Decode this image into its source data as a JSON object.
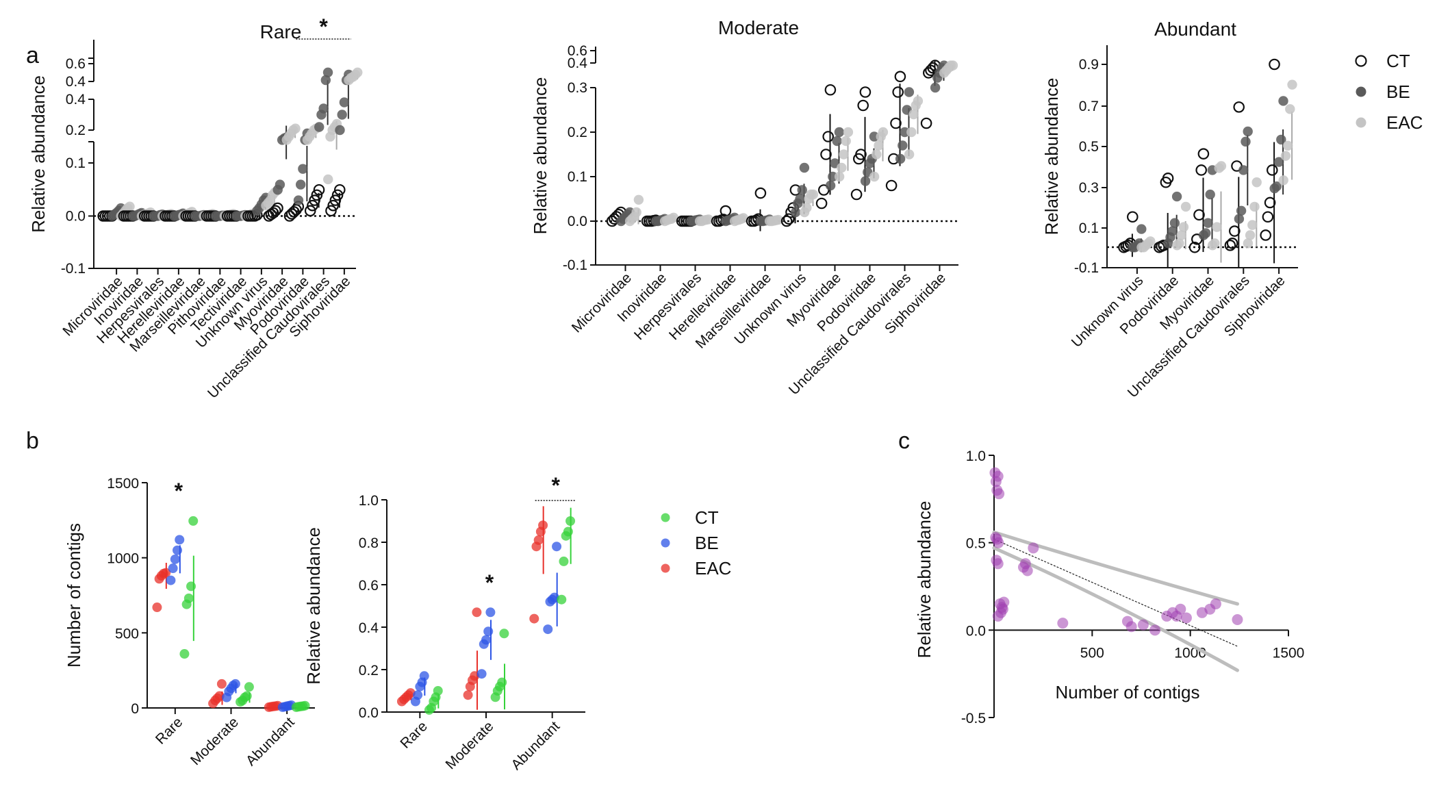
{
  "figure": {
    "panel_labels": [
      "a",
      "b",
      "c"
    ]
  },
  "chart_data": [
    {
      "id": "rare",
      "type": "scatter",
      "title": "Rare",
      "xlabel": "",
      "ylabel": "Relative abundance",
      "categories": [
        "Microviridae",
        "Inoviridae",
        "Herpesvirales",
        "Herelleviridae",
        "Marseilleviridae",
        "Pithoviridae",
        "Tectiviridae",
        "Unknown virus",
        "Myoviridae",
        "Podoviridae",
        "Unclassified Caudovirales",
        "Siphoviridae"
      ],
      "y_ticks": [
        "-0.1",
        "0.0",
        "0.1",
        "0.2",
        "0.4",
        "0.4",
        "0.6"
      ],
      "ylim": [
        -0.1,
        0.6
      ],
      "legend": "right",
      "series": [
        {
          "name": "CT",
          "values": [
            [
              0,
              0,
              0,
              0,
              0
            ],
            [
              0,
              0,
              0,
              0,
              0
            ],
            [
              0,
              0,
              0,
              0,
              0
            ],
            [
              0,
              0,
              0,
              0,
              0
            ],
            [
              0,
              0,
              0,
              0,
              0
            ],
            [
              0,
              0,
              0,
              0,
              0
            ],
            [
              0,
              0,
              0,
              0,
              0
            ],
            [
              0,
              0,
              0,
              0,
              0.002
            ],
            [
              0,
              0.003,
              0.006,
              0.01,
              0.015
            ],
            [
              0,
              0.004,
              0.008,
              0.012,
              0.018
            ],
            [
              0.01,
              0.02,
              0.03,
              0.04,
              0.05
            ],
            [
              0.01,
              0.02,
              0.03,
              0.04,
              0.05
            ]
          ]
        },
        {
          "name": "BE",
          "values": [
            [
              0,
              0.003,
              0.006,
              0.01,
              0.015
            ],
            [
              0,
              0,
              0.002,
              0.004,
              0.006
            ],
            [
              0,
              0,
              0,
              0.002,
              0.003
            ],
            [
              0,
              0,
              0.002,
              0.003,
              0.005
            ],
            [
              0,
              0,
              0,
              0.001,
              0.002
            ],
            [
              0,
              0,
              0,
              0.001,
              0.001
            ],
            [
              0,
              0,
              0,
              0.001,
              0.002
            ],
            [
              0.01,
              0.015,
              0.022,
              0.03,
              0.035
            ],
            [
              0.05,
              0.06,
              0.17,
              0.175,
              0.178
            ],
            [
              0.03,
              0.06,
              0.09,
              0.17,
              0.19
            ],
            [
              0.22,
              0.3,
              0.34,
              0.45,
              0.52
            ],
            [
              0.2,
              0.3,
              0.38,
              0.45,
              0.5
            ]
          ]
        },
        {
          "name": "EAC",
          "values": [
            [
              0,
              0.005,
              0.01,
              0.015,
              0.018
            ],
            [
              0,
              0.002,
              0.004,
              0.005,
              0.007
            ],
            [
              0,
              0,
              0.002,
              0.003,
              0.004
            ],
            [
              0,
              0.002,
              0.004,
              0.006,
              0.008
            ],
            [
              0,
              0,
              0.002,
              0.003,
              0.004
            ],
            [
              0,
              0,
              0.002,
              0.003,
              0.004
            ],
            [
              0,
              0,
              0.002,
              0.004,
              0.005
            ],
            [
              0.02,
              0.025,
              0.03,
              0.04,
              0.045
            ],
            [
              0.17,
              0.18,
              0.19,
              0.2,
              0.21
            ],
            [
              0.17,
              0.18,
              0.19,
              0.2,
              0.21
            ],
            [
              0.07,
              0.18,
              0.2,
              0.22,
              0.24
            ],
            [
              0.45,
              0.47,
              0.48,
              0.5,
              0.52
            ]
          ]
        }
      ],
      "annotations": [
        {
          "text": "*",
          "between": "Podoviridae-Siphoviridae"
        }
      ]
    },
    {
      "id": "moderate",
      "type": "scatter",
      "title": "Moderate",
      "xlabel": "",
      "ylabel": "Relative abundance",
      "categories": [
        "Microviridae",
        "Inoviridae",
        "Herpesvirales",
        "Herelleviridae",
        "Marseilleviridae",
        "Unknown virus",
        "Myoviridae",
        "Podoviridae",
        "Unclassified Caudovirales",
        "Siphoviridae"
      ],
      "y_ticks": [
        "-0.1",
        "0.0",
        "0.1",
        "0.2",
        "0.3",
        "0.4",
        "0.6"
      ],
      "ylim": [
        -0.1,
        0.6
      ],
      "series": [
        {
          "name": "CT",
          "values": [
            [
              0,
              0.005,
              0.01,
              0.015,
              0.02
            ],
            [
              0,
              0,
              0,
              0.001,
              0.002
            ],
            [
              0,
              0,
              0,
              0,
              0
            ],
            [
              0,
              0,
              0.002,
              0.004,
              0.023
            ],
            [
              0,
              0,
              0.002,
              0.005,
              0.063
            ],
            [
              0,
              0.005,
              0.02,
              0.03,
              0.07
            ],
            [
              0.04,
              0.07,
              0.15,
              0.19,
              0.295
            ],
            [
              0.06,
              0.14,
              0.15,
              0.26,
              0.29
            ],
            [
              0.08,
              0.14,
              0.22,
              0.29,
              0.345
            ],
            [
              0.22,
              0.36,
              0.37,
              0.38,
              0.39
            ]
          ]
        },
        {
          "name": "BE",
          "values": [
            [
              0,
              0.005,
              0.01,
              0.015,
              0.02
            ],
            [
              0,
              0,
              0.002,
              0.003,
              0.005
            ],
            [
              0,
              0,
              0.002,
              0.003,
              0.004
            ],
            [
              0,
              0.002,
              0.003,
              0.005,
              0.008
            ],
            [
              0,
              0,
              0.001,
              0.002,
              0.004
            ],
            [
              0.02,
              0.04,
              0.05,
              0.07,
              0.12
            ],
            [
              0.08,
              0.1,
              0.13,
              0.18,
              0.2
            ],
            [
              0.09,
              0.11,
              0.13,
              0.14,
              0.19
            ],
            [
              0.14,
              0.17,
              0.2,
              0.25,
              0.29
            ],
            [
              0.3,
              0.34,
              0.36,
              0.38,
              0.39
            ]
          ]
        },
        {
          "name": "EAC",
          "values": [
            [
              0,
              0.005,
              0.01,
              0.02,
              0.048
            ],
            [
              0,
              0.002,
              0.004,
              0.005,
              0.008
            ],
            [
              0,
              0,
              0.002,
              0.003,
              0.004
            ],
            [
              0,
              0.002,
              0.003,
              0.005,
              0.007
            ],
            [
              0,
              0,
              0.001,
              0.002,
              0.003
            ],
            [
              0.02,
              0.03,
              0.05,
              0.06,
              0.06
            ],
            [
              0.1,
              0.12,
              0.15,
              0.18,
              0.2
            ],
            [
              0.1,
              0.15,
              0.17,
              0.19,
              0.2
            ],
            [
              0.15,
              0.2,
              0.24,
              0.26,
              0.27
            ],
            [
              0.36,
              0.37,
              0.38,
              0.39,
              0.39
            ]
          ]
        }
      ]
    },
    {
      "id": "abundant",
      "type": "scatter",
      "title": "Abundant",
      "xlabel": "",
      "ylabel": "Relative abundance",
      "categories": [
        "Unknown virus",
        "Podoviridae",
        "Myoviridae",
        "Unclassified Caudovirales",
        "Siphoviridae"
      ],
      "y_ticks": [
        "-0.1",
        "0.1",
        "0.3",
        "0.5",
        "0.7",
        "0.9"
      ],
      "ylim": [
        -0.1,
        1.0
      ],
      "series": [
        {
          "name": "CT",
          "values": [
            [
              0,
              0.005,
              0.01,
              0.02,
              0.15
            ],
            [
              0,
              0.005,
              0.01,
              0.32,
              0.34
            ],
            [
              0,
              0.04,
              0.16,
              0.38,
              0.46
            ],
            [
              0.01,
              0.02,
              0.08,
              0.4,
              0.69
            ],
            [
              0.06,
              0.15,
              0.22,
              0.38,
              0.9
            ]
          ]
        },
        {
          "name": "BE",
          "values": [
            [
              0,
              0,
              0.01,
              0.02,
              0.09
            ],
            [
              0.02,
              0.05,
              0.08,
              0.12,
              0.25
            ],
            [
              0.06,
              0.07,
              0.12,
              0.26,
              0.38
            ],
            [
              0.14,
              0.18,
              0.38,
              0.52,
              0.57
            ],
            [
              0.29,
              0.3,
              0.42,
              0.53,
              0.72
            ]
          ]
        },
        {
          "name": "EAC",
          "values": [
            [
              0,
              0,
              0.01,
              0.02,
              0.03
            ],
            [
              0.01,
              0.02,
              0.06,
              0.1,
              0.2
            ],
            [
              0.01,
              0.02,
              0.1,
              0.39,
              0.4
            ],
            [
              0.02,
              0.06,
              0.11,
              0.2,
              0.32
            ],
            [
              0.33,
              0.45,
              0.5,
              0.68,
              0.8
            ]
          ]
        }
      ],
      "legend_entries": [
        "CT",
        "BE",
        "EAC"
      ]
    },
    {
      "id": "contigs",
      "type": "scatter",
      "title": "",
      "xlabel": "",
      "ylabel": "Number of contigs",
      "categories": [
        "Rare",
        "Moderate",
        "Abundant"
      ],
      "y_ticks": [
        "0",
        "500",
        "1000",
        "1500"
      ],
      "ylim": [
        0,
        1500
      ],
      "series": [
        {
          "name": "EAC",
          "color": "#e8302a",
          "values": [
            [
              670,
              860,
              880,
              895,
              900
            ],
            [
              30,
              50,
              65,
              80,
              160
            ],
            [
              5,
              8,
              10,
              12,
              15
            ]
          ]
        },
        {
          "name": "BE",
          "color": "#2d55e6",
          "values": [
            [
              850,
              930,
              990,
              1050,
              1120
            ],
            [
              70,
              110,
              130,
              150,
              160
            ],
            [
              5,
              8,
              12,
              15,
              18
            ]
          ]
        },
        {
          "name": "CT",
          "color": "#35d23a",
          "values": [
            [
              360,
              690,
              730,
              810,
              1245
            ],
            [
              40,
              50,
              70,
              80,
              140
            ],
            [
              5,
              8,
              10,
              12,
              15
            ]
          ]
        }
      ],
      "annotations": [
        {
          "text": "*",
          "category": "Rare"
        }
      ]
    },
    {
      "id": "relab_b",
      "type": "scatter",
      "title": "",
      "xlabel": "",
      "ylabel": "Relative abundance",
      "categories": [
        "Rare",
        "Moderate",
        "Abundant"
      ],
      "y_ticks": [
        "0.0",
        "0.2",
        "0.4",
        "0.6",
        "0.8",
        "1.0"
      ],
      "ylim": [
        0,
        1.0
      ],
      "series": [
        {
          "name": "EAC",
          "color": "#e8302a",
          "values": [
            [
              0.05,
              0.06,
              0.07,
              0.08,
              0.09
            ],
            [
              0.08,
              0.12,
              0.15,
              0.17,
              0.47
            ],
            [
              0.44,
              0.78,
              0.81,
              0.85,
              0.88
            ]
          ]
        },
        {
          "name": "BE",
          "color": "#2d55e6",
          "values": [
            [
              0.05,
              0.08,
              0.12,
              0.14,
              0.17
            ],
            [
              0.18,
              0.32,
              0.34,
              0.38,
              0.47
            ],
            [
              0.39,
              0.52,
              0.53,
              0.54,
              0.78
            ]
          ]
        },
        {
          "name": "CT",
          "color": "#35d23a",
          "values": [
            [
              0.01,
              0.02,
              0.05,
              0.07,
              0.1
            ],
            [
              0.07,
              0.1,
              0.12,
              0.14,
              0.37
            ],
            [
              0.53,
              0.71,
              0.83,
              0.85,
              0.9
            ]
          ]
        }
      ],
      "legend_entries": [
        "CT",
        "BE",
        "EAC"
      ],
      "annotations": [
        {
          "text": "*",
          "category": "Moderate"
        },
        {
          "text": "*",
          "category": "Abundant"
        }
      ]
    },
    {
      "id": "correlation",
      "type": "scatter",
      "title": "",
      "xlabel": "Number of contigs",
      "ylabel": "Relative abundance",
      "x_ticks": [
        "500",
        "1000",
        "1500"
      ],
      "y_ticks": [
        "-0.5",
        "0.0",
        "0.5",
        "1.0"
      ],
      "xlim": [
        0,
        1500
      ],
      "ylim": [
        -0.5,
        1.0
      ],
      "points": [
        [
          5,
          0.9
        ],
        [
          10,
          0.85
        ],
        [
          15,
          0.8
        ],
        [
          20,
          0.88
        ],
        [
          25,
          0.78
        ],
        [
          8,
          0.53
        ],
        [
          15,
          0.52
        ],
        [
          22,
          0.5
        ],
        [
          12,
          0.4
        ],
        [
          20,
          0.38
        ],
        [
          30,
          0.15
        ],
        [
          40,
          0.13
        ],
        [
          50,
          0.16
        ],
        [
          35,
          0.1
        ],
        [
          20,
          0.08
        ],
        [
          45,
          0.12
        ],
        [
          150,
          0.36
        ],
        [
          160,
          0.38
        ],
        [
          170,
          0.34
        ],
        [
          200,
          0.47
        ],
        [
          350,
          0.04
        ],
        [
          680,
          0.05
        ],
        [
          700,
          0.02
        ],
        [
          760,
          0.03
        ],
        [
          820,
          0.0
        ],
        [
          880,
          0.08
        ],
        [
          910,
          0.1
        ],
        [
          950,
          0.12
        ],
        [
          980,
          0.07
        ],
        [
          1060,
          0.1
        ],
        [
          1100,
          0.12
        ],
        [
          1130,
          0.15
        ],
        [
          1240,
          0.06
        ],
        [
          930,
          0.08
        ]
      ],
      "fit": {
        "slope": -0.000494,
        "intercept": 0.52,
        "x_range": [
          0,
          1240
        ]
      },
      "ci_upper": [
        [
          0,
          0.56
        ],
        [
          600,
          0.35
        ],
        [
          1240,
          0.15
        ]
      ],
      "ci_lower": [
        [
          0,
          0.47
        ],
        [
          600,
          0.17
        ],
        [
          1240,
          -0.23
        ]
      ],
      "point_color": "#a040b0"
    }
  ]
}
